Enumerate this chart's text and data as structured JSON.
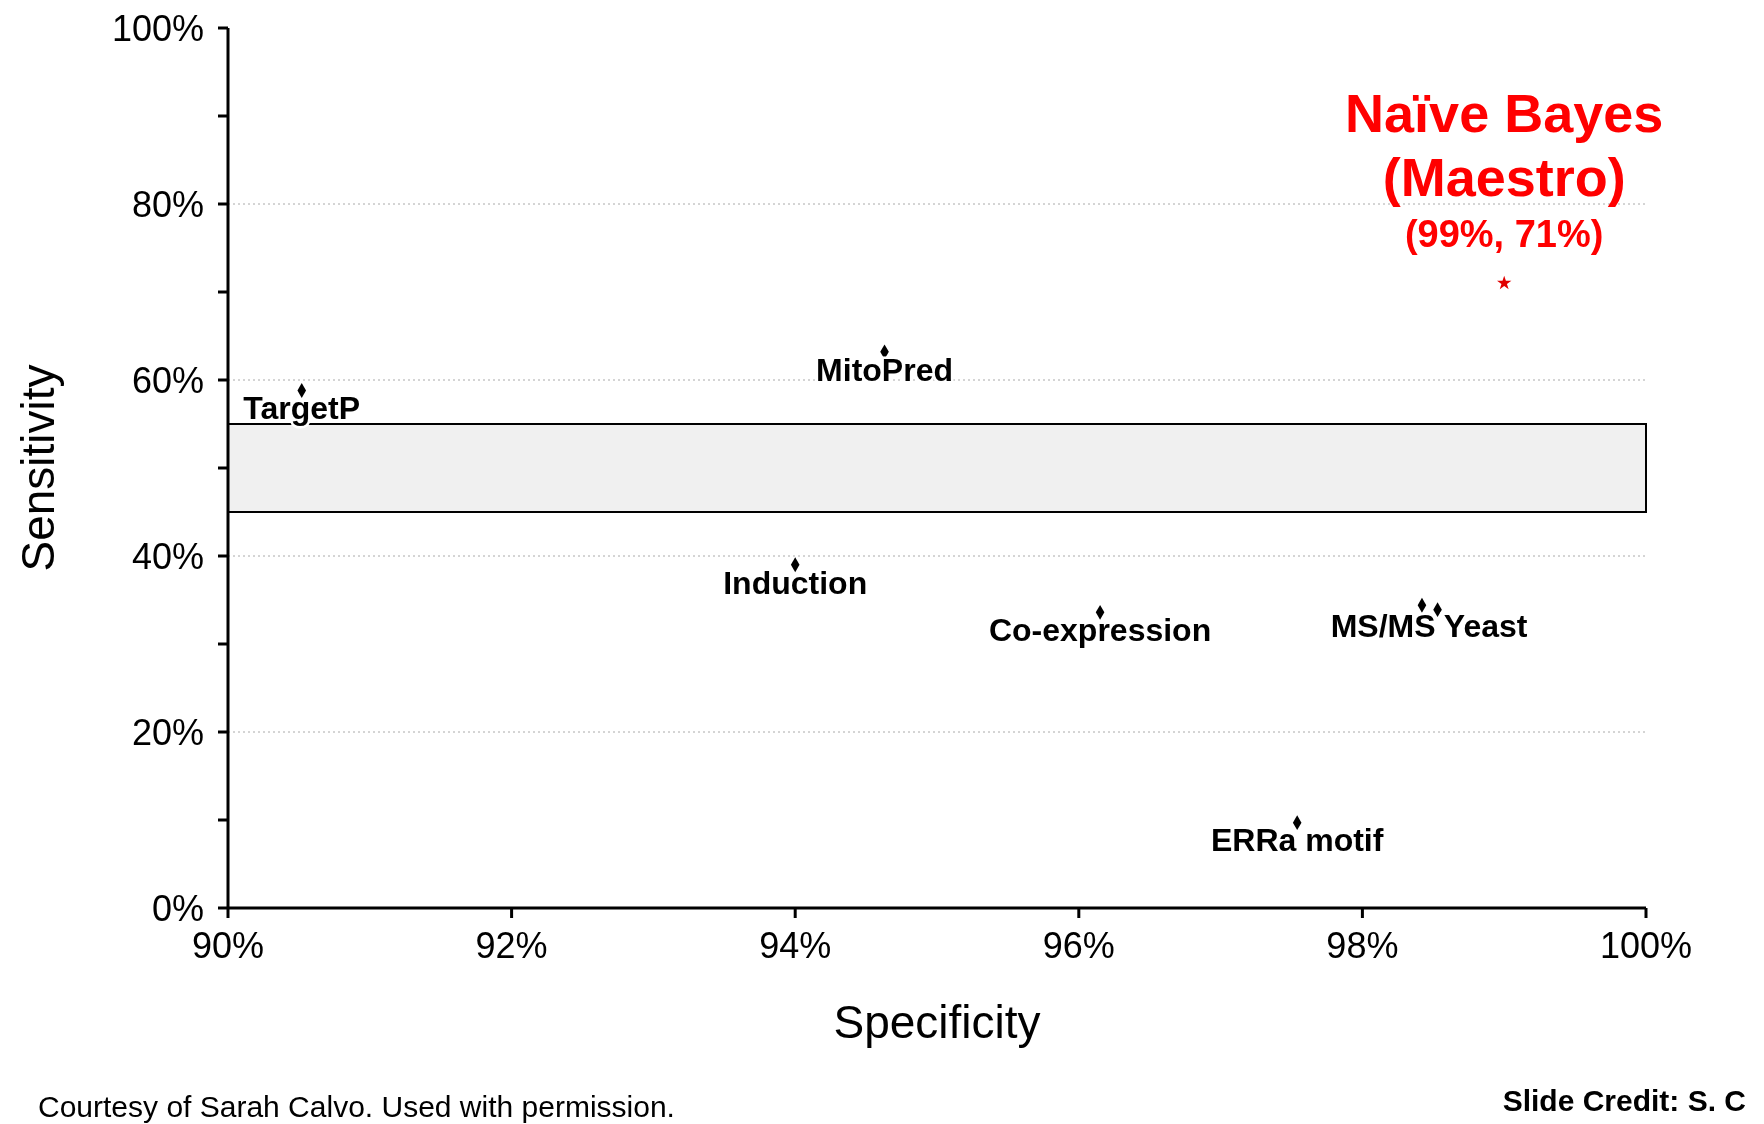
{
  "chart_data": {
    "type": "scatter",
    "xlabel": "Specificity",
    "ylabel": "Sensitivity",
    "series": [
      {
        "color": "#000000",
        "marker": "diamond",
        "x": [
          90.52,
          94.63,
          94.0,
          96.15,
          98.42,
          98.53,
          97.54
        ],
        "values": [
          58.8,
          63.2,
          39.0,
          33.6,
          34.4,
          33.9,
          9.7
        ]
      },
      {
        "name": "Naïve Bayes (Maestro)",
        "color": "#e00000",
        "marker": "star",
        "x": [
          99
        ],
        "values": [
          71
        ],
        "value_labels": [
          "(99%, 71%)"
        ]
      }
    ],
    "xlim": [
      90,
      100
    ],
    "xticks": [
      {
        "value": 90,
        "label": "90%"
      },
      {
        "value": 92,
        "label": "92%"
      },
      {
        "value": 94,
        "label": "94%"
      },
      {
        "value": 96,
        "label": "96%"
      },
      {
        "value": 98,
        "label": "98%"
      },
      {
        "value": 100,
        "label": "100%"
      }
    ],
    "ylim": [
      0,
      100
    ],
    "yticks": [
      {
        "value": 0,
        "label": "0%"
      },
      {
        "value": 10,
        "label": null
      },
      {
        "value": 20,
        "label": "20%"
      },
      {
        "value": 30,
        "label": null
      },
      {
        "value": 40,
        "label": "40%"
      },
      {
        "value": 50,
        "label": null
      },
      {
        "value": 60,
        "label": "60%"
      },
      {
        "value": 70,
        "label": null
      },
      {
        "value": 80,
        "label": "80%"
      },
      {
        "value": 90,
        "label": null
      },
      {
        "value": 100,
        "label": "100%"
      }
    ],
    "bands": [
      {
        "axis": "y",
        "from": 45,
        "to": 55,
        "color": "#000000"
      }
    ],
    "grid": "y",
    "legend": false,
    "annotations": [
      {
        "text": "TargetP",
        "x": 90.52,
        "y": 58.8
      },
      {
        "text": "MitoPred",
        "x": 94.63,
        "y": 63.2
      },
      {
        "text": "Induction",
        "x": 94.0,
        "y": 39.0
      },
      {
        "text": "Co-expression",
        "x": 96.15,
        "y": 33.6
      },
      {
        "text": "MS/MS Yeast",
        "x": 98.47,
        "y": 34.1
      },
      {
        "text": "ERRa motif",
        "x": 97.54,
        "y": 9.7
      },
      "Courtesy of Sarah Calvo. Used with permission.",
      "Slide Credit: S. C"
    ]
  }
}
